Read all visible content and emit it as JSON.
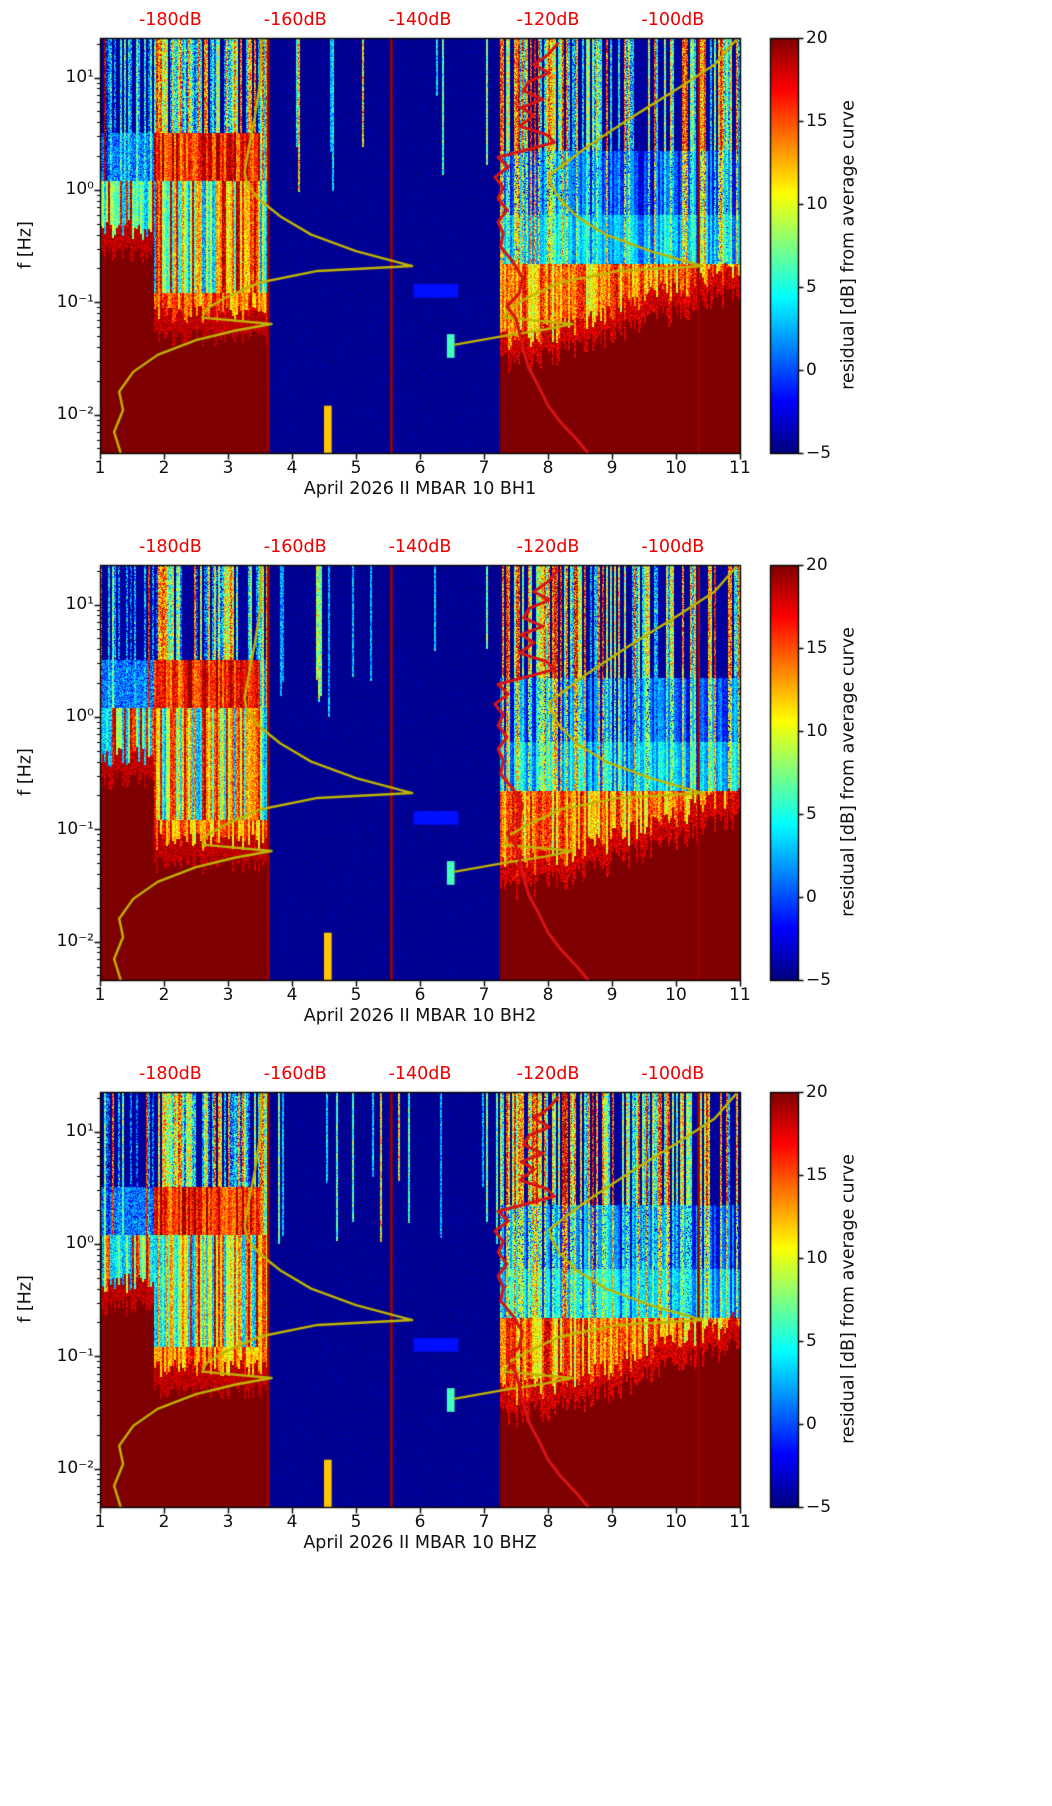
{
  "chart_data": {
    "type": "heatmap",
    "description": "Three stacked seismic spectrogram panels of PSD residuals vs day (April 2026) and frequency for station II MBAR 10, channels BH1, BH2, BHZ; jet colormap; overlaid mean PSD curve (red) and reference noise-model curves (yellow); red top-axis labels give absolute PSD in dB.",
    "panels": [
      {
        "channel": "BH1",
        "xlabel": "April 2026 II MBAR 10 BH1"
      },
      {
        "channel": "BH2",
        "xlabel": "April 2026 II MBAR 10 BH2"
      },
      {
        "channel": "BHZ",
        "xlabel": "April 2026 II MBAR 10 BHZ"
      }
    ],
    "common": {
      "ylabel": "f [Hz]",
      "x_axis": {
        "min": 1,
        "max": 11,
        "ticks": [
          1,
          2,
          3,
          4,
          5,
          6,
          7,
          8,
          9,
          10,
          11
        ]
      },
      "y_axis": {
        "scale": "log",
        "min": 0.00455,
        "max": 22.5,
        "tick_values": [
          10,
          1,
          0.1,
          0.01
        ],
        "tick_labels": [
          "10¹",
          "10⁰",
          "10⁻¹",
          "10⁻²"
        ]
      },
      "top_axis": {
        "color": "#ee0000",
        "labels": [
          "-180dB",
          "-160dB",
          "-140dB",
          "-120dB",
          "-100dB"
        ],
        "x_positions": [
          2.1,
          4.05,
          6.0,
          8.0,
          9.95
        ]
      },
      "colorbar": {
        "label": "residual [dB] from average curve",
        "min": -5,
        "max": 20,
        "tick_values": [
          20,
          15,
          10,
          5,
          0,
          -5
        ],
        "tick_labels": [
          "20",
          "15",
          "10",
          "5",
          "0",
          "−5"
        ],
        "colormap": "jet"
      },
      "vertical_red_lines_x": [
        3.63,
        5.55,
        10.35
      ],
      "heatmap_regions": [
        {
          "x_range": [
            1.0,
            1.85
          ],
          "character": "saturated high residual (≈20 dB) below ~0.3 Hz; mixed moderate streaks above"
        },
        {
          "x_range": [
            1.85,
            3.63
          ],
          "character": "noisy: red band 1–3 Hz, mixed cyan/yellow/red 0.05–1 Hz, saturated red below ~0.05 Hz, dense speckled streaks above 3 Hz"
        },
        {
          "x_range": [
            3.63,
            7.25
          ],
          "character": "quiet: ≈ −5 dB background with sparse vertical streaks above ~1.5 Hz"
        },
        {
          "x_range": [
            7.25,
            11.0
          ],
          "character": "noisy: dense vertical streaks at all frequencies; saturated red below ~0.03–0.13 Hz rising toward the right"
        }
      ],
      "extra_features": [
        {
          "x_range": [
            4.5,
            4.62
          ],
          "f_range": [
            0.0045,
            0.012
          ],
          "value": 12
        },
        {
          "x_range": [
            5.9,
            6.6
          ],
          "f_range": [
            0.11,
            0.145
          ],
          "value": -1.5
        },
        {
          "x_range": [
            6.42,
            6.54
          ],
          "f_range": [
            0.032,
            0.052
          ],
          "value": 6
        }
      ],
      "overlay_curves": {
        "red_mean_psd": {
          "color": "#d81414",
          "points_x_f": [
            [
              8.15,
              20
            ],
            [
              8.0,
              16
            ],
            [
              7.78,
              13
            ],
            [
              8.02,
              11
            ],
            [
              7.7,
              9.2
            ],
            [
              7.62,
              7.6
            ],
            [
              7.92,
              6.4
            ],
            [
              7.58,
              5.4
            ],
            [
              7.78,
              4.6
            ],
            [
              7.56,
              3.7
            ],
            [
              7.98,
              3.1
            ],
            [
              8.1,
              2.65
            ],
            [
              7.7,
              2.3
            ],
            [
              7.22,
              1.95
            ],
            [
              7.38,
              1.6
            ],
            [
              7.17,
              1.3
            ],
            [
              7.3,
              1.05
            ],
            [
              7.22,
              0.84
            ],
            [
              7.36,
              0.66
            ],
            [
              7.22,
              0.52
            ],
            [
              7.3,
              0.41
            ],
            [
              7.26,
              0.31
            ],
            [
              7.45,
              0.23
            ],
            [
              7.6,
              0.165
            ],
            [
              7.55,
              0.12
            ],
            [
              7.36,
              0.092
            ],
            [
              7.5,
              0.071
            ],
            [
              7.56,
              0.052
            ],
            [
              7.62,
              0.037
            ],
            [
              7.7,
              0.026
            ],
            [
              7.85,
              0.018
            ],
            [
              8.0,
              0.012
            ],
            [
              8.2,
              0.0085
            ],
            [
              8.45,
              0.006
            ],
            [
              8.62,
              0.0046
            ]
          ]
        },
        "yellow_noise_model_left": {
          "color": "#bfb400",
          "points_x_f": [
            [
              1.32,
              0.0046
            ],
            [
              1.22,
              0.007
            ],
            [
              1.36,
              0.011
            ],
            [
              1.3,
              0.016
            ],
            [
              1.52,
              0.024
            ],
            [
              1.9,
              0.034
            ],
            [
              2.5,
              0.046
            ],
            [
              3.12,
              0.056
            ],
            [
              3.68,
              0.064
            ],
            [
              2.6,
              0.073
            ],
            [
              2.66,
              0.087
            ],
            [
              2.96,
              0.11
            ],
            [
              3.5,
              0.15
            ],
            [
              4.4,
              0.19
            ],
            [
              5.88,
              0.21
            ],
            [
              5.0,
              0.285
            ],
            [
              4.3,
              0.4
            ],
            [
              3.82,
              0.58
            ],
            [
              3.48,
              0.83
            ],
            [
              3.3,
              1.12
            ],
            [
              3.26,
              1.45
            ],
            [
              3.32,
              2.3
            ],
            [
              3.42,
              4.5
            ],
            [
              3.5,
              9
            ],
            [
              3.52,
              22
            ]
          ]
        },
        "yellow_noise_model_right": {
          "color": "#bfb400",
          "points_x_f": [
            [
              6.55,
              0.042
            ],
            [
              7.3,
              0.05
            ],
            [
              7.95,
              0.057
            ],
            [
              8.38,
              0.064
            ],
            [
              7.32,
              0.073
            ],
            [
              7.38,
              0.087
            ],
            [
              7.68,
              0.11
            ],
            [
              8.2,
              0.15
            ],
            [
              9.1,
              0.19
            ],
            [
              10.42,
              0.21
            ],
            [
              9.6,
              0.285
            ],
            [
              8.9,
              0.4
            ],
            [
              8.45,
              0.58
            ],
            [
              8.18,
              0.83
            ],
            [
              8.05,
              1.12
            ],
            [
              8.02,
              1.35
            ],
            [
              8.6,
              2.4
            ],
            [
              9.3,
              4.4
            ],
            [
              10.0,
              7.8
            ],
            [
              10.6,
              13
            ],
            [
              10.95,
              22
            ]
          ]
        }
      }
    }
  }
}
